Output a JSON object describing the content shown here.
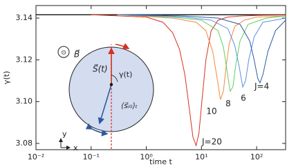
{
  "chart_data": {
    "type": "line",
    "xlabel": "time t",
    "ylabel": "γ(t)",
    "xscale": "log",
    "xlim": [
      0.01,
      335
    ],
    "ylim": [
      3.077,
      3.146
    ],
    "xticks": [
      {
        "value": 0.01,
        "label": "10⁻²"
      },
      {
        "value": 0.1,
        "label": "10⁻¹"
      },
      {
        "value": 1,
        "label": "10⁰"
      },
      {
        "value": 10,
        "label": "10¹"
      },
      {
        "value": 100,
        "label": "10²"
      }
    ],
    "yticks": [
      3.08,
      {
        "value": 3.1,
        "label": "3.10"
      },
      3.12,
      3.14
    ],
    "hline": 3.14159,
    "series": [
      {
        "name": "J=20",
        "color": "#d7301f",
        "x": [
          0.1,
          1,
          2,
          3,
          4,
          5,
          6,
          7,
          8,
          9,
          10,
          12,
          15,
          20,
          30,
          50,
          100,
          335
        ],
        "values": [
          3.1416,
          3.1405,
          3.138,
          3.133,
          3.125,
          3.113,
          3.097,
          3.083,
          3.079,
          3.085,
          3.098,
          3.12,
          3.134,
          3.139,
          3.1405,
          3.141,
          3.1413,
          3.1415
        ]
      },
      {
        "name": "10",
        "color": "#f08a3c",
        "x": [
          0.3,
          3,
          8,
          12,
          16,
          19,
          22,
          25,
          28,
          32,
          40,
          60,
          100,
          335
        ],
        "values": [
          3.1416,
          3.14,
          3.138,
          3.134,
          3.124,
          3.112,
          3.101,
          3.105,
          3.117,
          3.128,
          3.136,
          3.139,
          3.1405,
          3.141
        ]
      },
      {
        "name": "8",
        "color": "#5fcf5f",
        "x": [
          0.3,
          3,
          10,
          20,
          25,
          29,
          33,
          37,
          42,
          50,
          70,
          150,
          335
        ],
        "values": [
          3.1416,
          3.1405,
          3.139,
          3.134,
          3.126,
          3.115,
          3.105,
          3.107,
          3.118,
          3.129,
          3.137,
          3.14,
          3.141
        ]
      },
      {
        "name": "6",
        "color": "#5b8fe0",
        "x": [
          0.3,
          5,
          15,
          30,
          40,
          48,
          56,
          63,
          72,
          90,
          130,
          335
        ],
        "values": [
          3.1416,
          3.1405,
          3.139,
          3.135,
          3.127,
          3.117,
          3.107,
          3.11,
          3.12,
          3.131,
          3.138,
          3.14
        ]
      },
      {
        "name": "J=4",
        "color": "#2c5aa0",
        "x": [
          0.5,
          5,
          20,
          50,
          75,
          90,
          105,
          115,
          130,
          160,
          220,
          335
        ],
        "values": [
          3.1416,
          3.141,
          3.14,
          3.137,
          3.129,
          3.12,
          3.111,
          3.109,
          3.113,
          3.124,
          3.134,
          3.139
        ]
      }
    ],
    "annotations": [
      "⊙",
      "B⃗",
      "S⃗(t)",
      "γ(t)",
      "⟨s⃗ᵢ₀⟩ₜ",
      "y",
      "x"
    ]
  }
}
